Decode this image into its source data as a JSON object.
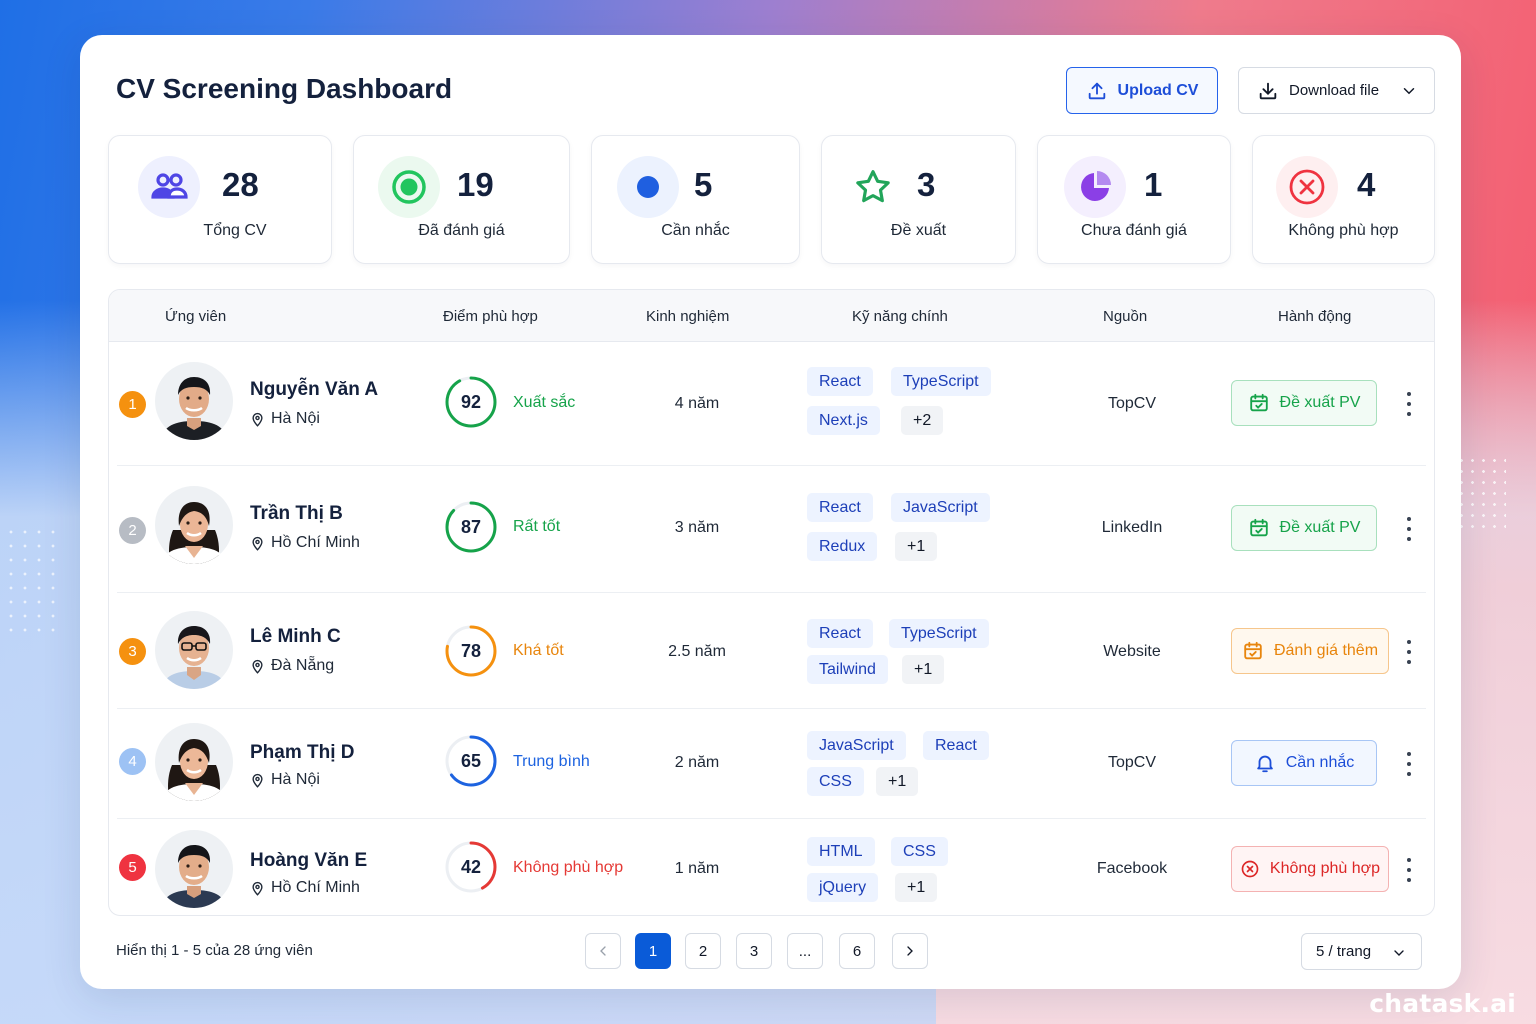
{
  "header": {
    "title": "CV Screening Dashboard",
    "upload_label": "Upload CV",
    "download_label": "Download file"
  },
  "stats": [
    {
      "value": "28",
      "label": "Tổng CV",
      "icon": "users-icon",
      "color": "#4f46e5"
    },
    {
      "value": "19",
      "label": "Đã đánh giá",
      "icon": "radio-target-icon",
      "color": "#22c55e"
    },
    {
      "value": "5",
      "label": "Cần nhắc",
      "icon": "dot-icon",
      "color": "#1f5fe0"
    },
    {
      "value": "3",
      "label": "Đề xuất",
      "icon": "star-icon",
      "color": "#22a55a"
    },
    {
      "value": "1",
      "label": "Chưa đánh giá",
      "icon": "pie-icon",
      "color": "#8b3fe6"
    },
    {
      "value": "4",
      "label": "Không phù hợp",
      "icon": "x-circle-icon",
      "color": "#ef3340"
    }
  ],
  "table": {
    "headers": [
      "Ứng viên",
      "Điểm phù hợp",
      "Kinh nghiệm",
      "Kỹ năng chính",
      "Nguồn",
      "Hành động"
    ],
    "rows": [
      {
        "rank": "1",
        "name": "Nguyễn Văn A",
        "location": "Hà Nội",
        "score": "92",
        "score_pct": 0.92,
        "grade": "Xuất sắc",
        "experience": "4 năm",
        "skills": [
          "React",
          "TypeScript",
          "Next.js",
          "+2"
        ],
        "source": "TopCV",
        "action": "Đề xuất PV",
        "action_icon": "calendar-check-icon"
      },
      {
        "rank": "2",
        "name": "Trần Thị B",
        "location": "Hồ Chí Minh",
        "score": "87",
        "score_pct": 0.87,
        "grade": "Rất tốt",
        "experience": "3 năm",
        "skills": [
          "React",
          "JavaScript",
          "Redux",
          "+1"
        ],
        "source": "LinkedIn",
        "action": "Đề xuất PV",
        "action_icon": "calendar-check-icon"
      },
      {
        "rank": "3",
        "name": "Lê Minh C",
        "location": "Đà Nẵng",
        "score": "78",
        "score_pct": 0.78,
        "grade": "Khá tốt",
        "experience": "2.5 năm",
        "skills": [
          "React",
          "TypeScript",
          "Tailwind",
          "+1"
        ],
        "source": "Website",
        "action": "Đánh giá thêm",
        "action_icon": "calendar-check-icon"
      },
      {
        "rank": "4",
        "name": "Phạm Thị D",
        "location": "Hà Nội",
        "score": "65",
        "score_pct": 0.65,
        "grade": "Trung bình",
        "experience": "2 năm",
        "skills": [
          "JavaScript",
          "React",
          "CSS",
          "+1"
        ],
        "source": "TopCV",
        "action": "Cần nhắc",
        "action_icon": "bell-icon"
      },
      {
        "rank": "5",
        "name": "Hoàng Văn E",
        "location": "Hồ Chí Minh",
        "score": "42",
        "score_pct": 0.42,
        "grade": "Không phù hợp",
        "experience": "1 năm",
        "skills": [
          "HTML",
          "CSS",
          "jQuery",
          "+1"
        ],
        "source": "Facebook",
        "action": "Không phù hợp",
        "action_icon": "x-circle-icon"
      }
    ]
  },
  "footer": {
    "summary": "Hiển thị 1 - 5 của 28 ứng viên",
    "pages": [
      "1",
      "2",
      "3",
      "...",
      "6"
    ],
    "current_page": "1",
    "per_page": "5 / trang"
  },
  "brand": "chatask.ai",
  "colors": {
    "primary": "#0a5bd8",
    "excellent": "#16a34a",
    "good": "#e8850c",
    "average": "#1d63e0",
    "poor": "#e53935"
  }
}
